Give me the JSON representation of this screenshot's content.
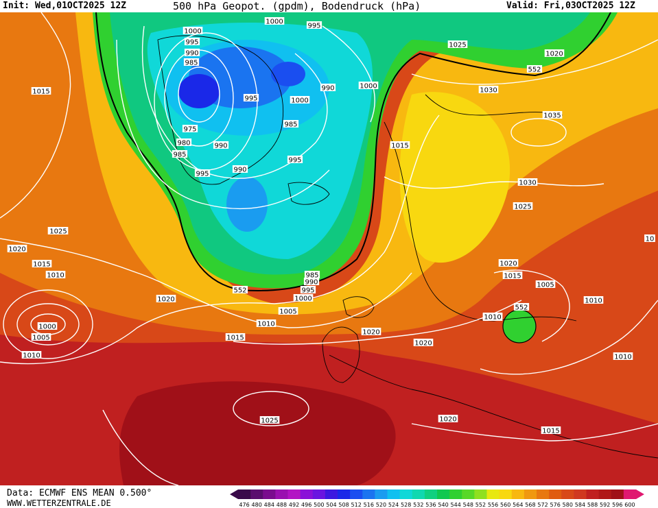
{
  "header": {
    "init": "Init: Wed,01OCT2025 12Z",
    "title": "500 hPa Geopot. (gpdm), Bodendruck (hPa)",
    "valid": "Valid: Fri,03OCT2025 12Z"
  },
  "footer": {
    "data_source": "Data: ECMWF ENS MEAN 0.500°",
    "website": "WWW.WETTERZENTRALE.DE"
  },
  "scale": {
    "values": [
      "476",
      "480",
      "484",
      "488",
      "492",
      "496",
      "500",
      "504",
      "508",
      "512",
      "516",
      "520",
      "524",
      "528",
      "532",
      "536",
      "540",
      "544",
      "548",
      "552",
      "556",
      "560",
      "564",
      "568",
      "572",
      "576",
      "580",
      "584",
      "588",
      "592",
      "596",
      "600"
    ],
    "colors": [
      "#3a0a4a",
      "#5a0d6e",
      "#7a0c8e",
      "#9a10b0",
      "#b314c4",
      "#8a10d8",
      "#6a14e0",
      "#3c18e0",
      "#1a28e8",
      "#1a4ef0",
      "#1a74f0",
      "#1a9cf0",
      "#10c0f0",
      "#10d8d8",
      "#10d8b0",
      "#10d080",
      "#10c850",
      "#30d030",
      "#58d828",
      "#90e020",
      "#e8e810",
      "#f8d810",
      "#f8b810",
      "#f09810",
      "#e87810",
      "#e05c10",
      "#d84818",
      "#d03820",
      "#c02020",
      "#b01818",
      "#a01018",
      "#e01870"
    ]
  },
  "pressure_labels": [
    {
      "text": "1000"
    },
    {
      "text": "995"
    },
    {
      "text": "990"
    },
    {
      "text": "985"
    },
    {
      "text": "975"
    },
    {
      "text": "980"
    },
    {
      "text": "985"
    },
    {
      "text": "995"
    },
    {
      "text": "990"
    },
    {
      "text": "995"
    },
    {
      "text": "1000"
    },
    {
      "text": "985"
    },
    {
      "text": "990"
    },
    {
      "text": "995"
    },
    {
      "text": "1000"
    },
    {
      "text": "995"
    },
    {
      "text": "1000"
    },
    {
      "text": "990"
    },
    {
      "text": "1025"
    },
    {
      "text": "1020"
    },
    {
      "text": "1030"
    },
    {
      "text": "1035"
    },
    {
      "text": "1015"
    },
    {
      "text": "1030"
    },
    {
      "text": "1025"
    },
    {
      "text": "1015"
    },
    {
      "text": "1025"
    },
    {
      "text": "1020"
    },
    {
      "text": "1015"
    },
    {
      "text": "1010"
    },
    {
      "text": "1000"
    },
    {
      "text": "1005"
    },
    {
      "text": "1010"
    },
    {
      "text": "1020"
    },
    {
      "text": "985"
    },
    {
      "text": "990"
    },
    {
      "text": "995"
    },
    {
      "text": "1000"
    },
    {
      "text": "1005"
    },
    {
      "text": "1010"
    },
    {
      "text": "1015"
    },
    {
      "text": "1020"
    },
    {
      "text": "1020"
    },
    {
      "text": "1015"
    },
    {
      "text": "1005"
    },
    {
      "text": "1010"
    },
    {
      "text": "1010"
    },
    {
      "text": "1020"
    },
    {
      "text": "1010"
    },
    {
      "text": "1025"
    },
    {
      "text": "1020"
    },
    {
      "text": "1015"
    },
    {
      "text": "10"
    },
    {
      "text": "1010"
    },
    {
      "text": "1025"
    }
  ],
  "geopot_labels": [
    {
      "text": "552"
    },
    {
      "text": "552"
    },
    {
      "text": "552"
    }
  ]
}
